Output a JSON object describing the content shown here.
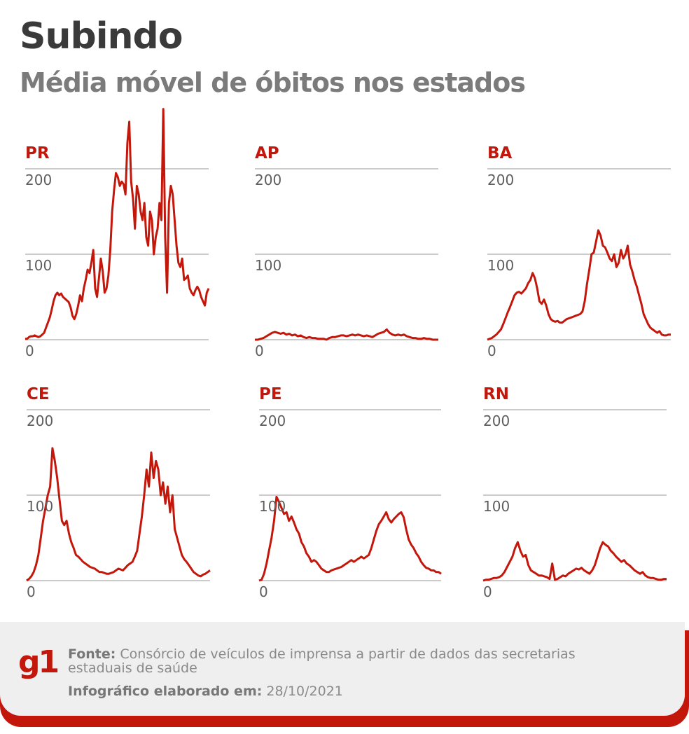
{
  "header": {
    "title": "Subindo",
    "subtitle": "Média móvel de óbitos nos estados"
  },
  "colors": {
    "line": "#c4170c",
    "grid": "#b8b8b8",
    "tick_text": "#5e5e5e",
    "title": "#3a3a3a",
    "subtitle": "#7b7b7b",
    "footer_bg": "#efefef",
    "brand": "#c4170c"
  },
  "chart_data": [
    {
      "type": "line",
      "title": "PR",
      "ylim": [
        0,
        200
      ],
      "yticks": [
        "0",
        "100",
        "200"
      ],
      "grid": true,
      "values": [
        1,
        1,
        3,
        4,
        4,
        5,
        4,
        3,
        4,
        6,
        8,
        14,
        20,
        26,
        35,
        45,
        52,
        55,
        52,
        54,
        50,
        48,
        46,
        44,
        38,
        28,
        24,
        30,
        40,
        52,
        45,
        60,
        70,
        82,
        78,
        90,
        105,
        60,
        50,
        72,
        95,
        80,
        55,
        60,
        75,
        105,
        150,
        175,
        195,
        190,
        180,
        185,
        182,
        170,
        230,
        255,
        185,
        165,
        130,
        180,
        170,
        150,
        140,
        160,
        120,
        110,
        150,
        140,
        100,
        120,
        130,
        160,
        140,
        270,
        120,
        55,
        160,
        180,
        170,
        140,
        110,
        90,
        85,
        95,
        70,
        72,
        75,
        60,
        55,
        52,
        58,
        62,
        58,
        50,
        45,
        40,
        55,
        60
      ]
    },
    {
      "type": "line",
      "title": "AP",
      "ylim": [
        0,
        200
      ],
      "yticks": [
        "0",
        "100",
        "200"
      ],
      "grid": true,
      "values": [
        0,
        0,
        1,
        2,
        4,
        6,
        8,
        9,
        8,
        7,
        8,
        6,
        7,
        5,
        6,
        4,
        5,
        3,
        2,
        3,
        2,
        2,
        1,
        1,
        1,
        0,
        2,
        3,
        3,
        4,
        5,
        5,
        4,
        5,
        6,
        5,
        6,
        5,
        4,
        5,
        4,
        3,
        5,
        7,
        8,
        9,
        12,
        8,
        6,
        5,
        6,
        5,
        6,
        4,
        3,
        2,
        2,
        1,
        1,
        2,
        1,
        1,
        0,
        0,
        0
      ]
    },
    {
      "type": "line",
      "title": "BA",
      "ylim": [
        0,
        200
      ],
      "yticks": [
        "0",
        "100",
        "200"
      ],
      "grid": true,
      "values": [
        0,
        1,
        2,
        4,
        6,
        9,
        12,
        18,
        25,
        32,
        38,
        45,
        52,
        55,
        56,
        54,
        57,
        60,
        66,
        70,
        78,
        72,
        60,
        45,
        42,
        47,
        40,
        30,
        24,
        22,
        21,
        22,
        20,
        20,
        22,
        24,
        25,
        26,
        27,
        28,
        29,
        30,
        33,
        45,
        65,
        82,
        100,
        102,
        115,
        128,
        122,
        110,
        108,
        102,
        95,
        92,
        100,
        85,
        90,
        105,
        95,
        100,
        110,
        88,
        80,
        70,
        62,
        52,
        42,
        30,
        24,
        18,
        14,
        12,
        10,
        8,
        10,
        6,
        5,
        5,
        6,
        6
      ]
    },
    {
      "type": "line",
      "title": "CE",
      "ylim": [
        0,
        200
      ],
      "yticks": [
        "0",
        "100",
        "200"
      ],
      "grid": true,
      "values": [
        0,
        2,
        5,
        10,
        18,
        30,
        50,
        70,
        85,
        100,
        110,
        155,
        140,
        120,
        95,
        70,
        65,
        70,
        55,
        45,
        38,
        30,
        28,
        25,
        22,
        20,
        18,
        16,
        15,
        14,
        12,
        10,
        10,
        9,
        8,
        8,
        9,
        10,
        12,
        14,
        13,
        12,
        15,
        18,
        20,
        22,
        28,
        35,
        55,
        75,
        100,
        130,
        110,
        150,
        120,
        140,
        130,
        100,
        115,
        90,
        110,
        80,
        100,
        60,
        50,
        40,
        30,
        25,
        22,
        18,
        14,
        10,
        8,
        6,
        5,
        7,
        8,
        10,
        12
      ]
    },
    {
      "type": "line",
      "title": "PE",
      "ylim": [
        0,
        200
      ],
      "yticks": [
        "0",
        "100",
        "200"
      ],
      "grid": true,
      "values": [
        0,
        1,
        8,
        20,
        35,
        50,
        70,
        98,
        92,
        85,
        78,
        80,
        70,
        75,
        68,
        60,
        55,
        45,
        40,
        32,
        28,
        22,
        24,
        22,
        18,
        14,
        12,
        10,
        10,
        12,
        13,
        14,
        15,
        16,
        18,
        20,
        22,
        24,
        22,
        24,
        26,
        28,
        26,
        28,
        30,
        38,
        48,
        58,
        66,
        70,
        75,
        80,
        72,
        68,
        72,
        75,
        78,
        80,
        74,
        60,
        48,
        42,
        38,
        32,
        28,
        22,
        18,
        15,
        14,
        12,
        12,
        10,
        10,
        8
      ]
    },
    {
      "type": "line",
      "title": "RN",
      "ylim": [
        0,
        200
      ],
      "yticks": [
        "0",
        "100",
        "200"
      ],
      "grid": true,
      "values": [
        0,
        1,
        1,
        2,
        3,
        3,
        4,
        6,
        10,
        16,
        22,
        28,
        38,
        45,
        35,
        28,
        30,
        18,
        12,
        10,
        8,
        6,
        6,
        5,
        4,
        2,
        20,
        1,
        2,
        4,
        6,
        5,
        8,
        10,
        12,
        14,
        13,
        15,
        12,
        10,
        8,
        12,
        18,
        28,
        38,
        45,
        42,
        40,
        35,
        32,
        28,
        25,
        22,
        24,
        20,
        18,
        15,
        12,
        10,
        8,
        10,
        6,
        4,
        3,
        3,
        2,
        1,
        1,
        2,
        2
      ]
    }
  ],
  "footer": {
    "logo": "g1",
    "source_label": "Fonte:",
    "source_text": " Consórcio de veículos de imprensa a partir de dados das secretarias estaduais de saúde",
    "date_label": "Infográfico elaborado em:",
    "date_text": " 28/10/2021"
  }
}
